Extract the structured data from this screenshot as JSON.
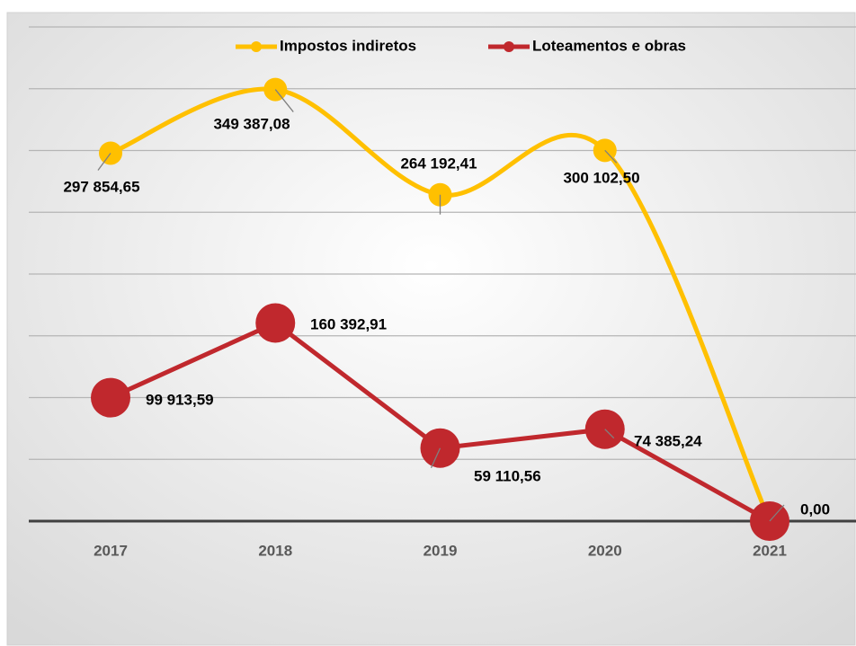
{
  "chart_data": {
    "type": "line",
    "categories": [
      "2017",
      "2018",
      "2019",
      "2020",
      "2021"
    ],
    "series": [
      {
        "name": "Impostos indiretos",
        "color": "#FFC000",
        "smooth": true,
        "values": [
          297854.65,
          349387.08,
          264192.41,
          300102.5,
          0
        ],
        "value_labels": [
          "297 854,65",
          "349 387,08",
          "264 192,41",
          "300 102,50",
          null
        ]
      },
      {
        "name": "Loteamentos e obras",
        "color": "#C0282D",
        "smooth": false,
        "values": [
          99913.59,
          160392.91,
          59110.56,
          74385.24,
          0
        ],
        "value_labels": [
          "99 913,59",
          "160 392,91",
          "59 110,56",
          "74 385,24",
          "0,00"
        ]
      }
    ],
    "ylim": [
      0,
      400000
    ],
    "yticks": [
      0,
      50000,
      100000,
      150000,
      200000,
      250000,
      300000,
      350000,
      400000
    ],
    "grid": true,
    "legend": "top"
  }
}
